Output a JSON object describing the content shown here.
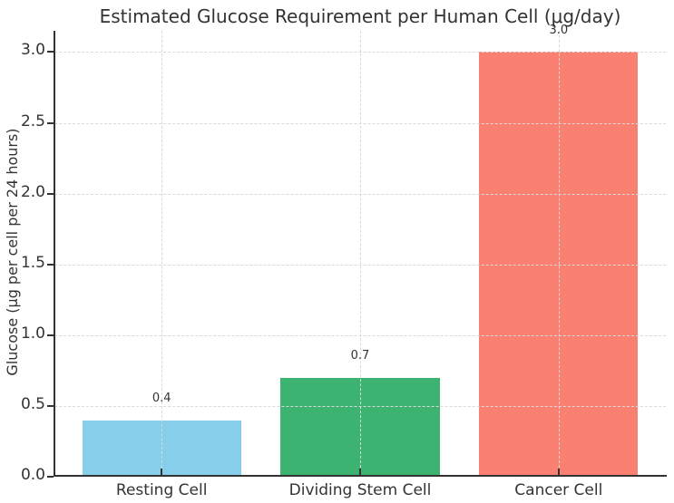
{
  "chart_data": {
    "type": "bar",
    "title": "Estimated Glucose Requirement per Human Cell (μg/day)",
    "ylabel": "Glucose (μg per cell per 24 hours)",
    "xlabel": "",
    "categories": [
      "Resting Cell",
      "Dividing Stem Cell",
      "Cancer Cell"
    ],
    "values": [
      0.4,
      0.7,
      3.0
    ],
    "bar_value_labels": [
      "0.4",
      "0.7",
      "3.0"
    ],
    "bar_colors": [
      "#87CEEB",
      "#3CB371",
      "#FA8072"
    ],
    "yticks": [
      0,
      0.5,
      1,
      1.5,
      2,
      2.5,
      3
    ],
    "ytick_labels": [
      "0.0",
      "0.5",
      "1.0",
      "1.5",
      "2.0",
      "2.5",
      "3.0"
    ],
    "ylim": [
      0,
      3.15
    ],
    "xlim": [
      -0.54,
      2.54
    ],
    "bar_width": 0.8,
    "grid": true,
    "grid_style": "dashed",
    "legend": "none",
    "background_color": "#ffffff",
    "text_color": "#333333",
    "spine_color": "#333333",
    "grid_color": "#d9d9d9"
  }
}
